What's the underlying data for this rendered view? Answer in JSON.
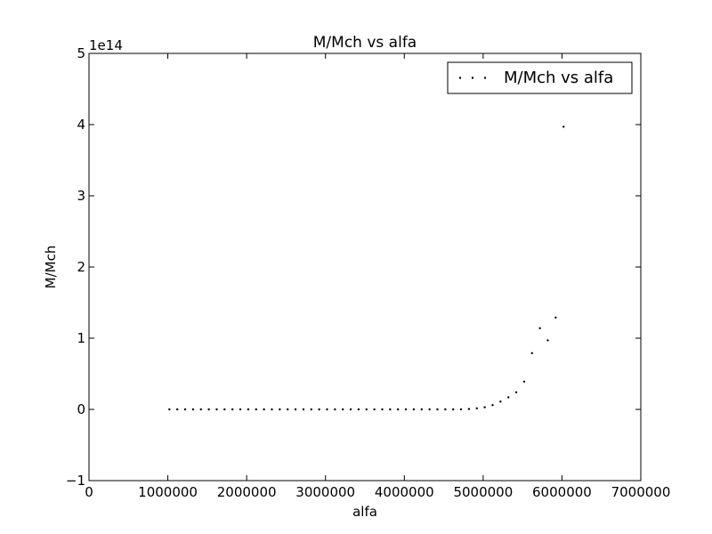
{
  "chart_data": {
    "type": "scatter",
    "title": "M/Mch vs alfa",
    "xlabel": "alfa",
    "ylabel": "M/Mch",
    "xlim": [
      0,
      7000000
    ],
    "ylim": [
      -100000000000000,
      500000000000000
    ],
    "y_offset_label": "1e14",
    "y_scale": 100000000000000,
    "x_ticks": [
      0,
      1000000,
      2000000,
      3000000,
      4000000,
      5000000,
      6000000,
      7000000
    ],
    "x_tick_labels": [
      "0",
      "1000000",
      "2000000",
      "3000000",
      "4000000",
      "5000000",
      "6000000",
      "7000000"
    ],
    "y_ticks": [
      -1,
      0,
      1,
      2,
      3,
      4,
      5
    ],
    "y_tick_labels": [
      "−1",
      "0",
      "1",
      "2",
      "3",
      "4",
      "5"
    ],
    "grid": false,
    "legend": {
      "position": "top-right",
      "entries": [
        "M/Mch vs alfa"
      ]
    },
    "series": [
      {
        "name": "M/Mch vs alfa",
        "color": "#000000",
        "marker": "point",
        "x": [
          1020000,
          1120000,
          1220000,
          1320000,
          1420000,
          1520000,
          1620000,
          1720000,
          1820000,
          1920000,
          2020000,
          2120000,
          2220000,
          2320000,
          2420000,
          2520000,
          2620000,
          2720000,
          2820000,
          2920000,
          3020000,
          3120000,
          3220000,
          3320000,
          3420000,
          3520000,
          3620000,
          3720000,
          3820000,
          3920000,
          4020000,
          4120000,
          4220000,
          4320000,
          4420000,
          4520000,
          4620000,
          4720000,
          4820000,
          4920000,
          5020000,
          5120000,
          5220000,
          5320000,
          5420000,
          5520000,
          5620000,
          5720000,
          5820000,
          5920000,
          6020000
        ],
        "y": [
          0,
          0,
          0,
          0,
          0,
          0,
          0,
          0,
          0,
          0,
          0,
          0,
          0,
          0,
          0,
          0,
          0,
          0,
          0,
          0,
          0,
          0,
          0,
          0,
          0,
          0,
          0,
          0,
          0,
          0,
          0,
          0,
          0,
          0,
          0,
          0,
          10000000000,
          100000000000,
          500000000000,
          1500000000000,
          3000000000000,
          6000000000000,
          11000000000000,
          17000000000000,
          24000000000000,
          39000000000000,
          79000000000000,
          114000000000000,
          97000000000000,
          129000000000000,
          397000000000000
        ]
      }
    ]
  }
}
